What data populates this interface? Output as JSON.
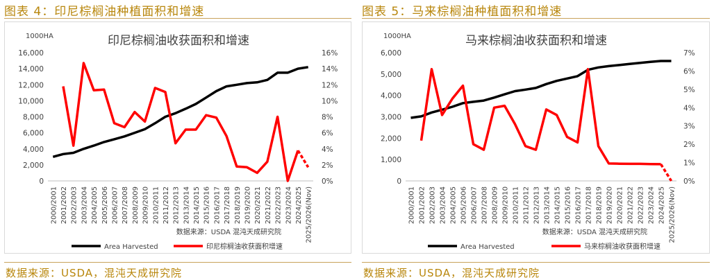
{
  "figures": [
    {
      "caption": "图表 4：印尼棕榈油种植面积和增速",
      "source": "数据来源：USDA，混沌天成研究院"
    },
    {
      "caption": "图表 5：马来棕榈油种植面积和增速",
      "source": "数据来源：USDA，混沌天成研究院"
    }
  ],
  "colors": {
    "area": "#000000",
    "growth": "#ff0000",
    "caption": "#b8860b"
  },
  "chart_data": [
    {
      "type": "line",
      "title": "印尼棕榈油收获面积和增速",
      "unit_label": "1000HA",
      "inner_source": "数据来源：USDA  混沌天成研究院",
      "categories": [
        "2000/2001",
        "2001/2002",
        "2002/2003",
        "2003/2004",
        "2004/2005",
        "2005/2006",
        "2006/2007",
        "2007/2008",
        "2008/2009",
        "2009/2010",
        "2010/2011",
        "2011/2012",
        "2012/2013",
        "2013/2014",
        "2014/2015",
        "2015/2016",
        "2016/2017",
        "2017/2018",
        "2018/2019",
        "2019/2020",
        "2020/2021",
        "2021/2022",
        "2022/2023",
        "2023/2024",
        "2024/2025",
        "2025/2026(Nov)"
      ],
      "ylim": [
        0,
        16000
      ],
      "y_ticks": [
        "0",
        "2,000",
        "4,000",
        "6,000",
        "8,000",
        "10,000",
        "12,000",
        "14,000",
        "16,000"
      ],
      "y2lim": [
        0,
        0.16
      ],
      "y2_ticks": [
        "0%",
        "2%",
        "4%",
        "6%",
        "8%",
        "10%",
        "12%",
        "14%",
        "16%"
      ],
      "series": [
        {
          "name": "Area Harvested",
          "axis": "left",
          "values": [
            3000,
            3350,
            3500,
            4000,
            4400,
            4850,
            5200,
            5550,
            6000,
            6450,
            7200,
            8000,
            8450,
            9000,
            9600,
            10400,
            11200,
            11800,
            12000,
            12200,
            12300,
            12600,
            13500,
            13500,
            14000,
            14200
          ]
        },
        {
          "name": "印尼棕榈油收获面积增速",
          "axis": "right",
          "values": [
            null,
            0.118,
            0.044,
            0.147,
            0.113,
            0.114,
            0.072,
            0.067,
            0.086,
            0.074,
            0.116,
            0.111,
            0.047,
            0.064,
            0.064,
            0.082,
            0.079,
            0.056,
            0.018,
            0.017,
            0.01,
            0.024,
            0.08,
            0.0,
            0.038,
            0.017
          ],
          "dashed_last": true
        }
      ]
    },
    {
      "type": "line",
      "title": "马来棕榈油收获面积和增速",
      "unit_label": "1000HA",
      "inner_source": "数据来源：USDA  混沌天成研究院",
      "categories": [
        "2000/2001",
        "2001/2002",
        "2002/2003",
        "2003/2004",
        "2004/2005",
        "2005/2006",
        "2006/2007",
        "2007/2008",
        "2008/2009",
        "2009/2010",
        "2010/2011",
        "2011/2012",
        "2012/2013",
        "2013/2014",
        "2014/2015",
        "2015/2016",
        "2016/2017",
        "2017/2018",
        "2018/2019",
        "2019/2020",
        "2020/2021",
        "2021/2022",
        "2022/2023",
        "2023/2024",
        "2024/2025",
        "2025/2026(Nov)"
      ],
      "ylim": [
        0,
        6000
      ],
      "y_ticks": [
        "0",
        "1,000",
        "2,000",
        "3,000",
        "4,000",
        "5,000",
        "6,000"
      ],
      "y2lim": [
        0,
        0.07
      ],
      "y2_ticks": [
        "0%",
        "1%",
        "2%",
        "3%",
        "4%",
        "5%",
        "6%",
        "7%"
      ],
      "series": [
        {
          "name": "Area Harvested",
          "axis": "left",
          "values": [
            2950,
            3020,
            3200,
            3330,
            3470,
            3640,
            3700,
            3760,
            3900,
            4050,
            4200,
            4270,
            4350,
            4530,
            4680,
            4790,
            4900,
            5200,
            5310,
            5370,
            5420,
            5470,
            5520,
            5570,
            5610,
            5610
          ]
        },
        {
          "name": "马来棕榈油收获面积增速",
          "axis": "right",
          "values": [
            null,
            0.022,
            0.061,
            0.036,
            0.045,
            0.052,
            0.02,
            0.017,
            0.04,
            0.041,
            0.031,
            0.019,
            0.017,
            0.039,
            0.036,
            0.024,
            0.021,
            0.061,
            0.019,
            0.0095,
            0.0094,
            0.0093,
            0.0093,
            0.0092,
            0.0091,
            0.0
          ],
          "dashed_last": true
        }
      ]
    }
  ]
}
